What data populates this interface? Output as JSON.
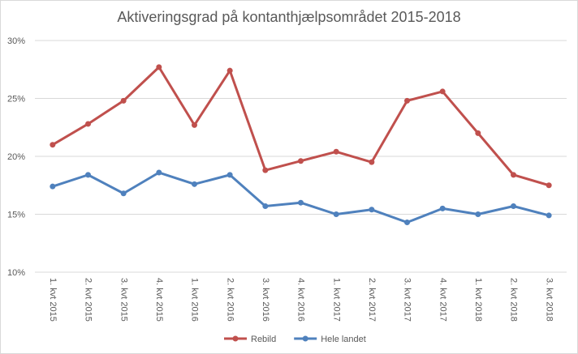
{
  "chart_data": {
    "type": "line",
    "title": "Aktiveringsgrad på kontanthjælpsområdet 2015-2018",
    "xlabel": "",
    "ylabel": "",
    "categories": [
      "1. kvt 2015",
      "2. kvt 2015",
      "3. kvt 2015",
      "4. kvt 2015",
      "1. kvt 2016",
      "2. kvt 2016",
      "3. kvt 2016",
      "4. kvt 2016",
      "1. kvt 2017",
      "2. kvt 2017",
      "3. kvt 2017",
      "4. kvt 2017",
      "1. kvt 2018",
      "2. kvt 2018",
      "3. kvt 2018"
    ],
    "ylim": [
      10,
      30
    ],
    "yticks": [
      10,
      15,
      20,
      25,
      30
    ],
    "ytick_labels": [
      "10%",
      "15%",
      "20%",
      "25%",
      "30%"
    ],
    "grid": true,
    "legend_position": "bottom",
    "series": [
      {
        "name": "Rebild",
        "color": "#c0504d",
        "values": [
          21.0,
          22.8,
          24.8,
          27.7,
          22.7,
          27.4,
          18.8,
          19.6,
          20.4,
          19.5,
          24.8,
          25.6,
          22.0,
          18.4,
          17.5
        ]
      },
      {
        "name": "Hele landet",
        "color": "#4f81bd",
        "values": [
          17.4,
          18.4,
          16.8,
          18.6,
          17.6,
          18.4,
          15.7,
          16.0,
          15.0,
          15.4,
          14.3,
          15.5,
          15.0,
          15.7,
          14.9
        ]
      }
    ]
  }
}
